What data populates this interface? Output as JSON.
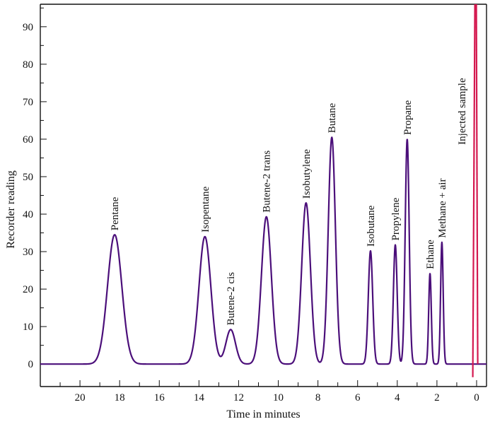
{
  "chart_data": {
    "type": "line",
    "title": "",
    "xlabel": "Time in minutes",
    "ylabel": "Recorder reading",
    "x_reversed": true,
    "xlim": [
      22,
      -0.5
    ],
    "ylim": [
      -6,
      96
    ],
    "x_ticks": [
      "20",
      "18",
      "16",
      "14",
      "12",
      "10",
      "8",
      "6",
      "4",
      "2",
      "0"
    ],
    "y_ticks": [
      "0",
      "10",
      "20",
      "30",
      "40",
      "50",
      "60",
      "70",
      "80",
      "90"
    ],
    "grid": false,
    "legend": "none",
    "colors": {
      "trace": "#4b0f7a",
      "injection": "#d4184f",
      "axis": "#111111"
    },
    "series": [
      {
        "baseline": 0,
        "peaks": [
          {
            "label": "Pentane",
            "x": 18.25,
            "y": 34.5
          },
          {
            "label": "Isopentane",
            "x": 13.7,
            "y": 34
          },
          {
            "label": "Butene-2 cis",
            "x": 12.4,
            "y": 9.2
          },
          {
            "label": "Butene-2 trans",
            "x": 10.6,
            "y": 39.3
          },
          {
            "label": "Isobutylene",
            "x": 8.6,
            "y": 43
          },
          {
            "label": "Butane",
            "x": 7.3,
            "y": 60.5
          },
          {
            "label": "Isobutane",
            "x": 5.35,
            "y": 30.2
          },
          {
            "label": "Propylene",
            "x": 4.1,
            "y": 31.8
          },
          {
            "label": "Propane",
            "x": 3.5,
            "y": 60
          },
          {
            "label": "Ethane",
            "x": 2.35,
            "y": 24.2
          },
          {
            "label": "Methane + air",
            "x": 1.75,
            "y": 32.5
          },
          {
            "label": "Injected sample",
            "x": 0.05,
            "y": 96
          }
        ]
      }
    ]
  }
}
